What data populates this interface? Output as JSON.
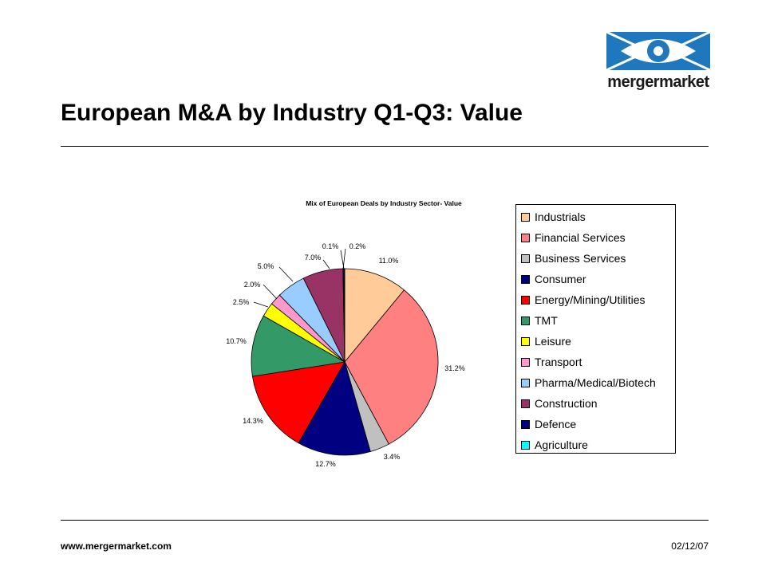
{
  "slide": {
    "title": "European M&A by Industry Q1-Q3: Value",
    "footer_url": "www.mergermarket.com",
    "footer_date": "02/12/07"
  },
  "logo": {
    "brand_text": "mergermarket",
    "brand_color": "#1f78bd"
  },
  "chart_data": {
    "type": "pie",
    "title": "Mix of European Deals by Industry Sector- Value",
    "categories": [
      "Industrials",
      "Financial Services",
      "Business Services",
      "Consumer",
      "Energy/Mining/Utilities",
      "TMT",
      "Leisure",
      "Transport",
      "Pharma/Medical/Biotech",
      "Construction",
      "Defence",
      "Agriculture"
    ],
    "values": [
      11.0,
      31.2,
      3.4,
      12.7,
      14.3,
      10.7,
      2.5,
      2.0,
      5.0,
      7.0,
      0.2,
      0.1
    ],
    "value_labels": [
      "11.0%",
      "31.2%",
      "3.4%",
      "12.7%",
      "14.3%",
      "10.7%",
      "2.5%",
      "2.0%",
      "5.0%",
      "7.0%",
      "0.2%",
      "0.1%"
    ],
    "colors": [
      "#FFCC99",
      "#FF8080",
      "#C0C0C0",
      "#000080",
      "#FF0000",
      "#339966",
      "#FFFF00",
      "#FF99CC",
      "#99CCFF",
      "#993366",
      "#000080",
      "#00FFFF"
    ],
    "legend_position": "right"
  }
}
